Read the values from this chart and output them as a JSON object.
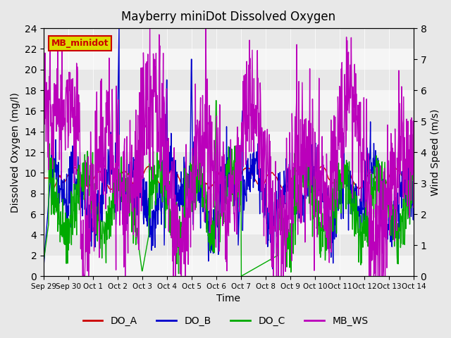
{
  "title": "Mayberry miniDot Dissolved Oxygen",
  "ylabel_left": "Dissolved Oxygen (mg/l)",
  "ylabel_right": "Wind Speed (m/s)",
  "xlabel": "Time",
  "ylim_left": [
    0,
    24
  ],
  "ylim_right": [
    0.0,
    8.0
  ],
  "yticks_left": [
    0,
    2,
    4,
    6,
    8,
    10,
    12,
    14,
    16,
    18,
    20,
    22,
    24
  ],
  "yticks_right": [
    0.0,
    1.0,
    2.0,
    3.0,
    4.0,
    5.0,
    6.0,
    7.0,
    8.0
  ],
  "xtick_labels": [
    "Sep 29",
    "Sep 30",
    "Oct 1",
    "Oct 2",
    "Oct 3",
    "Oct 4",
    "Oct 5",
    "Oct 6",
    "Oct 7",
    "Oct 8",
    "Oct 9",
    "Oct 10",
    "Oct 11",
    "Oct 12",
    "Oct 13",
    "Oct 14"
  ],
  "legend_entries": [
    "DO_A",
    "DO_B",
    "DO_C",
    "MB_WS"
  ],
  "line_colors": [
    "#cc0000",
    "#0000cc",
    "#00aa00",
    "#bb00bb"
  ],
  "inset_label": "MB_minidot",
  "inset_label_color": "#cc0000",
  "inset_box_color": "#dddd00",
  "background_color": "#e8e8e8",
  "plot_bg_color": "#e8e8e8",
  "grid_color": "#ffffff"
}
